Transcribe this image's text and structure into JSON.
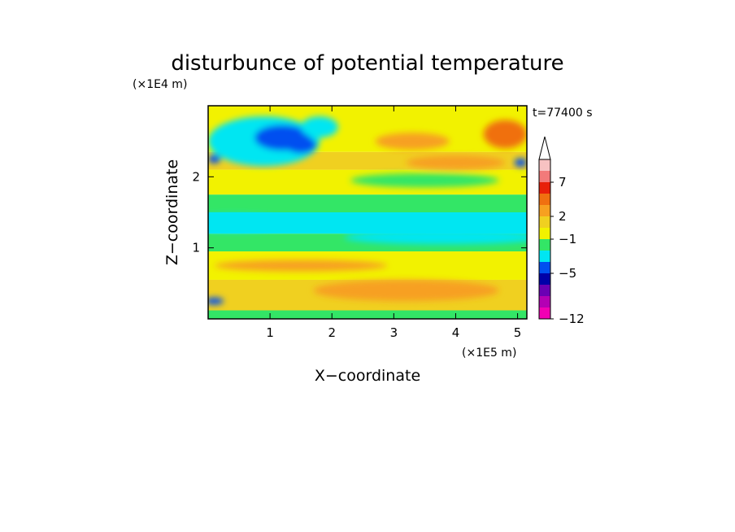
{
  "chart_data": {
    "type": "heatmap",
    "title": "disturbunce of potential temperature",
    "xlabel": "X−coordinate",
    "ylabel": "Z−coordinate",
    "x_unit": "(×1E5 m)",
    "y_unit": "(×1E4 m)",
    "time_label": "t=77400 s",
    "xlim": [
      0,
      5.15
    ],
    "ylim": [
      0,
      3.0
    ],
    "x_ticks": [
      1,
      2,
      3,
      4,
      5
    ],
    "x_tick_labels": [
      "1",
      "2",
      "3",
      "4",
      "5"
    ],
    "y_ticks": [
      1,
      2
    ],
    "y_tick_labels": [
      "1",
      "2"
    ],
    "colorbar": {
      "tick_labels": [
        "7",
        "2",
        "−1",
        "−5",
        "−12"
      ],
      "colors_top_to_bottom": [
        "#f7c2c2",
        "#f27a7a",
        "#e8200a",
        "#f07010",
        "#f7a020",
        "#f0d020",
        "#f2f200",
        "#33e666",
        "#00e6f2",
        "#0050f0",
        "#0000a8",
        "#6a00b4",
        "#b400b4",
        "#f200b4"
      ],
      "extend": "max",
      "extend_color": "#ffffff"
    },
    "field_colors": {
      "strong_warm": "#f7a020",
      "warm": "#f0d020",
      "neutral": "#f2f200",
      "slight_cool": "#33e666",
      "cool": "#00e6f2",
      "cold": "#0050f0",
      "very_cold": "#0000a8",
      "hot": "#f07010"
    },
    "bands": [
      {
        "z_range": [
          0.0,
          0.12
        ],
        "level": "slight_cool"
      },
      {
        "z_range": [
          0.12,
          0.55
        ],
        "level": "warm"
      },
      {
        "z_range": [
          0.55,
          0.95
        ],
        "level": "neutral"
      },
      {
        "z_range": [
          0.95,
          1.2
        ],
        "level": "slight_cool"
      },
      {
        "z_range": [
          1.2,
          1.5
        ],
        "level": "cool"
      },
      {
        "z_range": [
          1.5,
          1.75
        ],
        "level": "slight_cool"
      },
      {
        "z_range": [
          1.75,
          2.1
        ],
        "level": "neutral"
      },
      {
        "z_range": [
          2.1,
          2.35
        ],
        "level": "warm"
      },
      {
        "z_range": [
          2.35,
          3.0
        ],
        "level": "neutral"
      }
    ],
    "features": [
      {
        "x": 0.9,
        "z": 2.5,
        "level": "cool",
        "rx": 0.9,
        "rz": 0.35
      },
      {
        "x": 1.2,
        "z": 2.55,
        "level": "cold",
        "rx": 0.45,
        "rz": 0.18
      },
      {
        "x": 1.5,
        "z": 2.45,
        "level": "cold",
        "rx": 0.25,
        "rz": 0.12
      },
      {
        "x": 1.8,
        "z": 2.7,
        "level": "cool",
        "rx": 0.3,
        "rz": 0.15
      },
      {
        "x": 4.8,
        "z": 2.6,
        "level": "hot",
        "rx": 0.35,
        "rz": 0.2
      },
      {
        "x": 3.3,
        "z": 2.5,
        "level": "strong_warm",
        "rx": 0.6,
        "rz": 0.12
      },
      {
        "x": 4.0,
        "z": 2.2,
        "level": "strong_warm",
        "rx": 0.8,
        "rz": 0.1
      },
      {
        "x": 3.5,
        "z": 1.95,
        "level": "slight_cool",
        "rx": 1.2,
        "rz": 0.1
      },
      {
        "x": 0.4,
        "z": 1.35,
        "level": "cool",
        "rx": 0.9,
        "rz": 0.12
      },
      {
        "x": 3.8,
        "z": 1.15,
        "level": "cool",
        "rx": 1.6,
        "rz": 0.1
      },
      {
        "x": 1.5,
        "z": 0.75,
        "level": "strong_warm",
        "rx": 1.4,
        "rz": 0.08
      },
      {
        "x": 3.2,
        "z": 0.4,
        "level": "strong_warm",
        "rx": 1.5,
        "rz": 0.15
      },
      {
        "x": 0.1,
        "z": 2.25,
        "level": "cold",
        "rx": 0.1,
        "rz": 0.06
      },
      {
        "x": 5.05,
        "z": 2.2,
        "level": "cold",
        "rx": 0.1,
        "rz": 0.06
      },
      {
        "x": 0.1,
        "z": 0.25,
        "level": "cold",
        "rx": 0.15,
        "rz": 0.05
      }
    ]
  }
}
